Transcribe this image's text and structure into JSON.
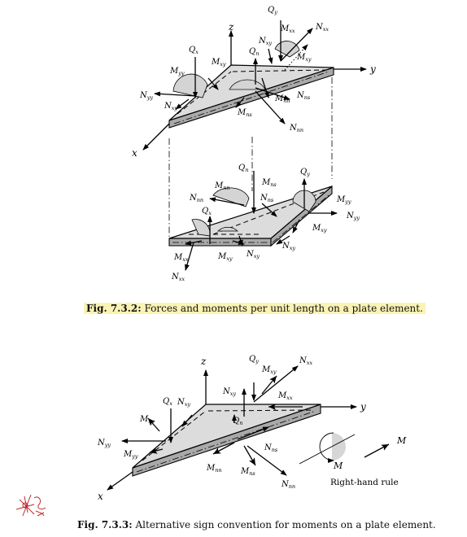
{
  "figure1": {
    "axes": {
      "z": "z",
      "y": "y",
      "x": "x"
    },
    "top_labels": {
      "Qy": [
        "Q",
        "y"
      ],
      "Nxx": [
        "N",
        "xx"
      ],
      "Mxx": [
        "M",
        "xx"
      ],
      "Nxy_a": [
        "N",
        "xy"
      ],
      "Qn": [
        "Q",
        "n"
      ],
      "Mxy_a": [
        "M",
        "xy"
      ],
      "Qx": [
        "Q",
        "x"
      ],
      "Mxy_b": [
        "M",
        "xy"
      ],
      "Myy": [
        "M",
        "yy"
      ],
      "Nyy": [
        "N",
        "yy"
      ],
      "Nxy_b": [
        "N",
        "xy"
      ],
      "Mnn": [
        "M",
        "nn"
      ],
      "Nns": [
        "N",
        "ns"
      ],
      "Mns": [
        "M",
        "ns"
      ],
      "Nnn": [
        "N",
        "nn"
      ]
    },
    "bottom_labels": {
      "Qn": [
        "Q",
        "n"
      ],
      "Mns": [
        "M",
        "ns"
      ],
      "Qy": [
        "Q",
        "y"
      ],
      "Mnn": [
        "M",
        "nn"
      ],
      "Nnn": [
        "N",
        "nn"
      ],
      "Nns": [
        "N",
        "ns"
      ],
      "Qx": [
        "Q",
        "x"
      ],
      "Myy": [
        "M",
        "yy"
      ],
      "Nyy": [
        "N",
        "yy"
      ],
      "Mxy_a": [
        "M",
        "xy"
      ],
      "Mxx": [
        "M",
        "xx"
      ],
      "Mxy_b": [
        "M",
        "xy"
      ],
      "Nxy_a": [
        "N",
        "xy"
      ],
      "Nxy_b": [
        "N",
        "xy"
      ],
      "Nxx": [
        "N",
        "xx"
      ]
    },
    "caption_label": "Fig. 7.3.2:",
    "caption_text": " Forces and moments per unit length on a plate element."
  },
  "figure2": {
    "axes": {
      "z": "z",
      "y": "y",
      "x": "x"
    },
    "labels": {
      "Qy": [
        "Q",
        "y"
      ],
      "Nxx": [
        "N",
        "xx"
      ],
      "Mxy_a": [
        "M",
        "xy"
      ],
      "Nxy_a": [
        "N",
        "xy"
      ],
      "Mxx": [
        "M",
        "xx"
      ],
      "Qx": [
        "Q",
        "x"
      ],
      "Nxy_b": [
        "N",
        "xy"
      ],
      "Qn": [
        "Q",
        "n"
      ],
      "Mxy_b": [
        "M",
        "xy"
      ],
      "Nyy": [
        "N",
        "yy"
      ],
      "Myy": [
        "M",
        "yy"
      ],
      "Nns": [
        "N",
        "ns"
      ],
      "Mnn": [
        "M",
        "nn"
      ],
      "Mns": [
        "M",
        "ns"
      ],
      "Nnn": [
        "N",
        "nn"
      ]
    },
    "right_hand": {
      "M1": "M",
      "M2": "M",
      "rule": "Right-hand rule"
    },
    "caption_label": "Fig. 7.3.3:",
    "caption_text": " Alternative sign convention for moments on a plate element."
  },
  "colors": {
    "caption_highlight": "#fbf3b4",
    "plate_top": "#dcdcdc",
    "plate_side": "#a9a9a9",
    "stamp": "#c0282d"
  },
  "stamp_icon": "handwritten-logo"
}
